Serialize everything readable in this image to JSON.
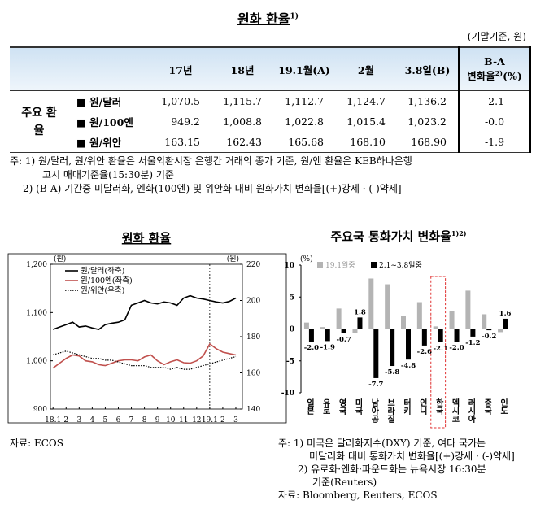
{
  "header": {
    "title": "원화 환율",
    "title_note": "1)",
    "unit": "(기말기준, 원)"
  },
  "table": {
    "columns": [
      "17년",
      "18년",
      "19.1월(A)",
      "2월",
      "3.8일(B)"
    ],
    "change_header": {
      "line1": "B-A",
      "line2": "변화율",
      "note": "2)",
      "unit": "(%)"
    },
    "group": "주요 환율",
    "rows": [
      [
        "■ 원/달러",
        "1,070.5",
        "1,115.7",
        "1,112.7",
        "1,124.7",
        "1,136.2",
        "-2.1"
      ],
      [
        "■ 원/100엔",
        "949.2",
        "1,008.8",
        "1,022.8",
        "1,015.4",
        "1,023.2",
        "-0.0"
      ],
      [
        "■ 원/위안",
        "163.15",
        "162.43",
        "165.68",
        "168.10",
        "168.90",
        "-1.9"
      ]
    ]
  },
  "notes": [
    "주: 1) 원/달러, 원/위안 환율은 서울외환시장 은행간 거래의 종가 기준, 원/엔 환율은 KEB하나은행",
    "고시 매매기준율(15:30분) 기준",
    "2) (B-A) 기간중 미달러화, 엔화(100엔) 및 위안화 대비 원화가치 변화율[(+)강세 · (-)약세]"
  ],
  "chart_data": [
    {
      "type": "line",
      "title": "원화 환율",
      "ylabel": "(원)",
      "y2label": "(원)",
      "legend": "upper left",
      "x": [
        0,
        0.5,
        1,
        1.5,
        2,
        2.5,
        3,
        3.5,
        4,
        4.5,
        5,
        5.5,
        6,
        6.5,
        7,
        7.5,
        8,
        8.5,
        9,
        9.5,
        10,
        10.5,
        11,
        11.5,
        12,
        12.5,
        13,
        13.5,
        14
      ],
      "xlim": [
        -0.2,
        14.5
      ],
      "xticks": [
        {
          "value": 0,
          "label": "18.1"
        },
        {
          "value": 1,
          "label": "2"
        },
        {
          "value": 2,
          "label": "3"
        },
        {
          "value": 3,
          "label": "4"
        },
        {
          "value": 4,
          "label": "5"
        },
        {
          "value": 5,
          "label": "6"
        },
        {
          "value": 6,
          "label": "7"
        },
        {
          "value": 7,
          "label": "8"
        },
        {
          "value": 8,
          "label": "9"
        },
        {
          "value": 9,
          "label": "10"
        },
        {
          "value": 10,
          "label": "11"
        },
        {
          "value": 11,
          "label": "12"
        },
        {
          "value": 12,
          "label": "19.1"
        },
        {
          "value": 13,
          "label": "2"
        },
        {
          "value": 14,
          "label": "3"
        }
      ],
      "ylim": [
        900,
        1200
      ],
      "yticks": [
        900,
        {
          "value": 1000,
          "label": "1,000"
        },
        {
          "value": 1100,
          "label": "1,100"
        },
        {
          "value": 1200,
          "label": "1,200"
        }
      ],
      "y2lim": [
        140,
        220
      ],
      "y2ticks": [
        140,
        160,
        180,
        200,
        220
      ],
      "series": [
        {
          "name": "원/달러(좌축)",
          "color": "#000000",
          "style": "solid",
          "values": [
            1065,
            1070,
            1075,
            1080,
            1070,
            1072,
            1068,
            1065,
            1075,
            1078,
            1080,
            1085,
            1115,
            1120,
            1125,
            1120,
            1118,
            1122,
            1120,
            1115,
            1130,
            1135,
            1130,
            1128,
            1125,
            1122,
            1120,
            1123,
            1130
          ]
        },
        {
          "name": "원/100엔(좌축)",
          "color": "#c0504d",
          "style": "solid",
          "values": [
            985,
            995,
            1005,
            1012,
            1010,
            1000,
            998,
            992,
            990,
            995,
            1000,
            1002,
            1002,
            1000,
            1008,
            1012,
            1000,
            992,
            998,
            1002,
            996,
            995,
            1000,
            1010,
            1035,
            1025,
            1018,
            1015,
            1012
          ]
        },
        {
          "name": "원/위안(우축)",
          "color": "#000000",
          "style": "dotted",
          "axis": "y2",
          "values": [
            170,
            171,
            172,
            171,
            170,
            169,
            168,
            168,
            167,
            167,
            166,
            165,
            164,
            164,
            164,
            163,
            163,
            163,
            162,
            163,
            162,
            162,
            163,
            164,
            165,
            166,
            167,
            168,
            169
          ]
        }
      ]
    },
    {
      "type": "bar",
      "title": "주요국 통화가치 변화율",
      "title_note": "1)2)",
      "ylabel": "(%)",
      "categories": [
        "일본",
        "유로",
        "영국",
        "미국",
        "남아공",
        "브라질",
        "터키",
        "인니",
        "한국",
        "멕시코",
        "러시아",
        "중국",
        "인도"
      ],
      "ylim": [
        -10,
        10
      ],
      "yticks": [
        10,
        5,
        0,
        -5,
        -10
      ],
      "legend": "upper left",
      "series": [
        {
          "name": "19.1월중",
          "color": "#b4b4b4",
          "values": [
            1.0,
            0.3,
            3.2,
            -0.6,
            7.9,
            7.0,
            2.0,
            4.2,
            0.4,
            2.8,
            6.0,
            2.3,
            -0.5
          ]
        },
        {
          "name": "2.1~3.8일중",
          "color": "#000000",
          "values": [
            -2.0,
            -1.9,
            -0.7,
            1.8,
            -7.7,
            -5.8,
            -4.8,
            -2.6,
            -2.1,
            -2.0,
            -1.2,
            -0.2,
            1.6
          ],
          "value_labels": [
            "-2.0",
            "-1.9",
            "-0.7",
            "1.8",
            "-7.7",
            "-5.8",
            "-4.8",
            "-2.6",
            "-2.1",
            "-2.0",
            "-1.2",
            "-0.2",
            "1.6"
          ]
        }
      ]
    }
  ],
  "left_source": "자료: ECOS",
  "right_notes": [
    "주: 1) 미국은 달러화지수(DXY) 기준, 여타 국가는",
    "미달러화 대비 통화가치 변화율[(+)강세 · (-)약세]",
    "2) 유로화·엔화·파운드화는 뉴욕시장 16:30분",
    "기준(Reuters)"
  ],
  "right_source": "자료: Bloomberg, Reuters, ECOS"
}
